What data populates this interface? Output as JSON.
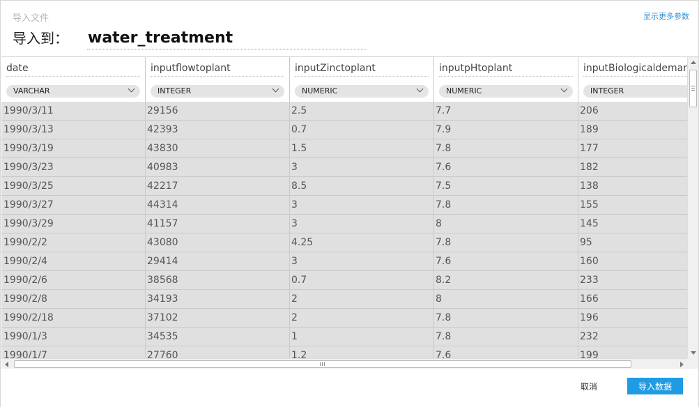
{
  "header": {
    "breadcrumb": "导入文件",
    "show_more": "显示更多参数",
    "import_to_label": "导入到：",
    "table_name": "water_treatment"
  },
  "columns": [
    {
      "name": "date",
      "type": "VARCHAR",
      "values": [
        "1990/3/11",
        "1990/3/13",
        "1990/3/19",
        "1990/3/23",
        "1990/3/25",
        "1990/3/27",
        "1990/3/29",
        "1990/2/2",
        "1990/2/4",
        "1990/2/6",
        "1990/2/8",
        "1990/2/18",
        "1990/1/3",
        "1990/1/7"
      ]
    },
    {
      "name": "inputflowtoplant",
      "type": "INTEGER",
      "values": [
        "29156",
        "42393",
        "43830",
        "40983",
        "42217",
        "44314",
        "41157",
        "43080",
        "29414",
        "38568",
        "34193",
        "37102",
        "34535",
        "27760"
      ]
    },
    {
      "name": "inputZinctoplant",
      "type": "NUMERIC",
      "values": [
        "2.5",
        "0.7",
        "1.5",
        "3",
        "8.5",
        "3",
        "3",
        "4.25",
        "3",
        "0.7",
        "2",
        "2",
        "1",
        "1.2"
      ]
    },
    {
      "name": "inputpHtoplant",
      "type": "NUMERIC",
      "values": [
        "7.7",
        "7.9",
        "7.8",
        "7.6",
        "7.5",
        "7.8",
        "8",
        "7.8",
        "7.6",
        "8.2",
        "8",
        "7.8",
        "7.8",
        "7.6"
      ]
    },
    {
      "name": "inputBiologicaldemand",
      "type": "INTEGER",
      "values": [
        "206",
        "189",
        "177",
        "182",
        "138",
        "155",
        "145",
        "95",
        "160",
        "233",
        "166",
        "196",
        "232",
        "199"
      ]
    }
  ],
  "footer": {
    "cancel_label": "取消",
    "import_label": "导入数据"
  },
  "colors": {
    "accent": "#1f9be3",
    "link": "#2b8fd6",
    "cell_bg": "#e0e0e0"
  }
}
